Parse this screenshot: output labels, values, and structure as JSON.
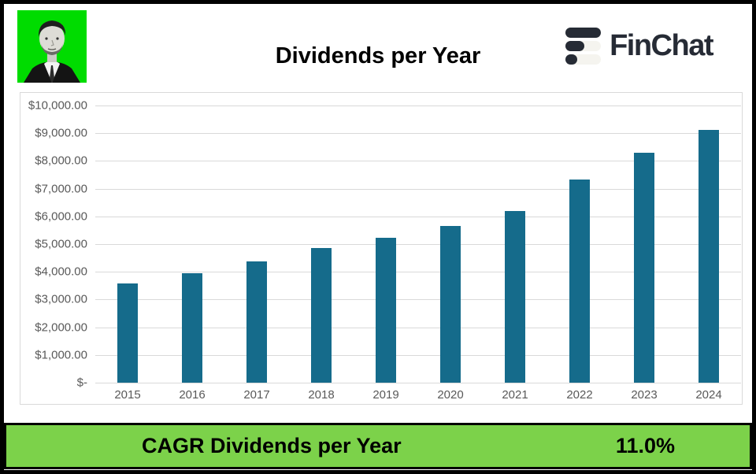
{
  "header": {
    "title": "Dividends per Year",
    "brand": "FinChat",
    "avatar": "black-and-white portrait of a man on green background"
  },
  "chart_data": {
    "type": "bar",
    "title": "Dividends per Year",
    "categories": [
      "2015",
      "2016",
      "2017",
      "2018",
      "2019",
      "2020",
      "2021",
      "2022",
      "2023",
      "2024"
    ],
    "values": [
      3590,
      3940,
      4380,
      4850,
      5220,
      5660,
      6200,
      7340,
      8300,
      9120
    ],
    "ylim": [
      0,
      10000
    ],
    "y_tick_labels": [
      "$10,000.00",
      "$9,000.00",
      "$8,000.00",
      "$7,000.00",
      "$6,000.00",
      "$5,000.00",
      "$4,000.00",
      "$3,000.00",
      "$2,000.00",
      "$1,000.00",
      "$-"
    ],
    "xlabel": "",
    "ylabel": "",
    "grid": true,
    "legend_position": "none"
  },
  "footer": {
    "label": "CAGR Dividends per Year",
    "value": "11.0%"
  },
  "colors": {
    "bar": "#156b8b",
    "footer_green": "#7cd24a",
    "avatar_green": "#00dc00",
    "logo_dark": "#262b35",
    "logo_light": "#f5f4ef",
    "grid": "#d9d9d9",
    "axis_text": "#595959",
    "panel_border": "#d9d9d9"
  }
}
